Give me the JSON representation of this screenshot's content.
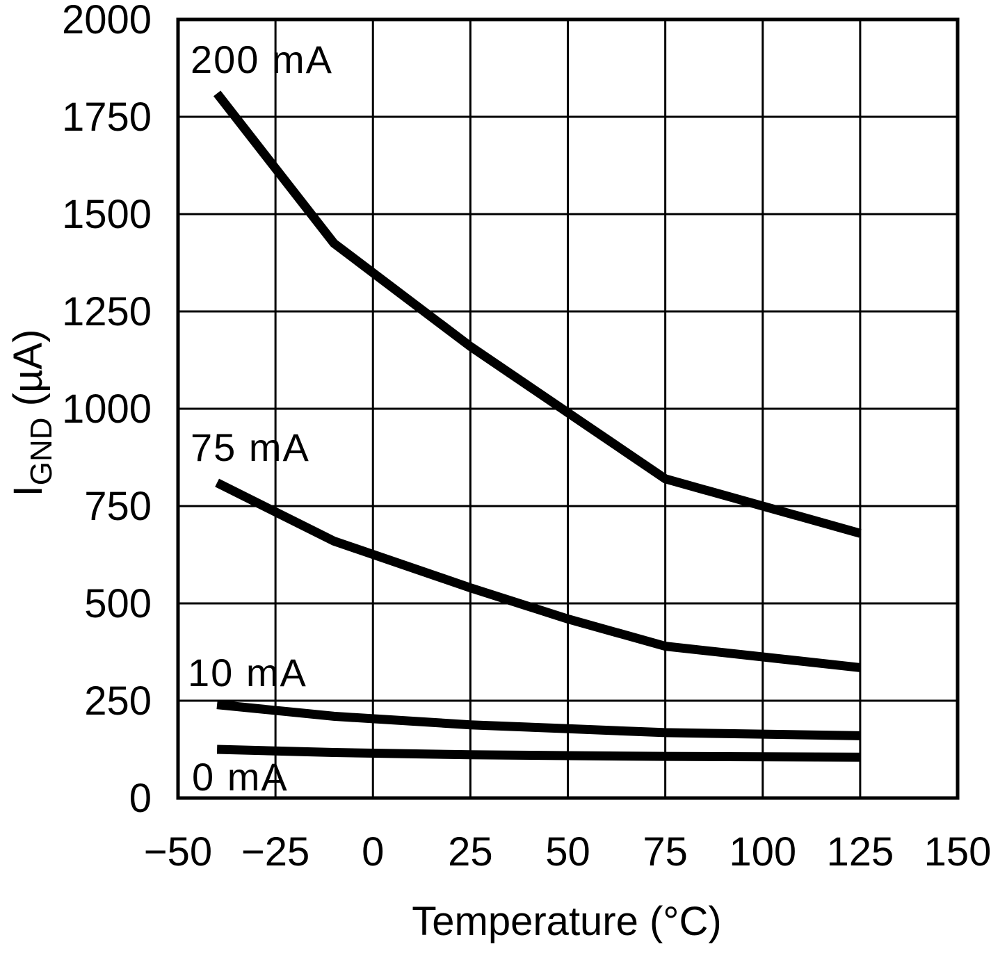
{
  "chart_data": {
    "type": "line",
    "title": "",
    "xlabel": "Temperature (°C)",
    "ylabel": "I",
    "ylabel_sub": "GND",
    "ylabel_unit": " (µA)",
    "xlim": [
      -50,
      150
    ],
    "ylim": [
      0,
      2000
    ],
    "xticks": [
      -50,
      -25,
      0,
      25,
      50,
      75,
      100,
      125,
      150
    ],
    "yticks": [
      0,
      250,
      500,
      750,
      1000,
      1250,
      1500,
      1750,
      2000
    ],
    "xtick_labels": [
      "−50",
      "−25",
      "0",
      "25",
      "50",
      "75",
      "100",
      "125",
      "150"
    ],
    "ytick_labels": [
      "0",
      "250",
      "500",
      "750",
      "1000",
      "1250",
      "1500",
      "1750",
      "2000"
    ],
    "grid": true,
    "series": [
      {
        "name": "200 mA",
        "x": [
          -40,
          -10,
          25,
          50,
          75,
          125
        ],
        "values": [
          1810,
          1425,
          1160,
          990,
          820,
          680
        ]
      },
      {
        "name": "75 mA",
        "x": [
          -40,
          -10,
          25,
          50,
          75,
          125
        ],
        "values": [
          810,
          660,
          540,
          460,
          390,
          335
        ]
      },
      {
        "name": "10 mA",
        "x": [
          -40,
          -10,
          25,
          50,
          75,
          125
        ],
        "values": [
          240,
          210,
          188,
          178,
          168,
          160
        ]
      },
      {
        "name": "0 mA",
        "x": [
          -40,
          -10,
          25,
          50,
          75,
          125
        ],
        "values": [
          125,
          117,
          111,
          109,
          107,
          105
        ]
      }
    ]
  }
}
